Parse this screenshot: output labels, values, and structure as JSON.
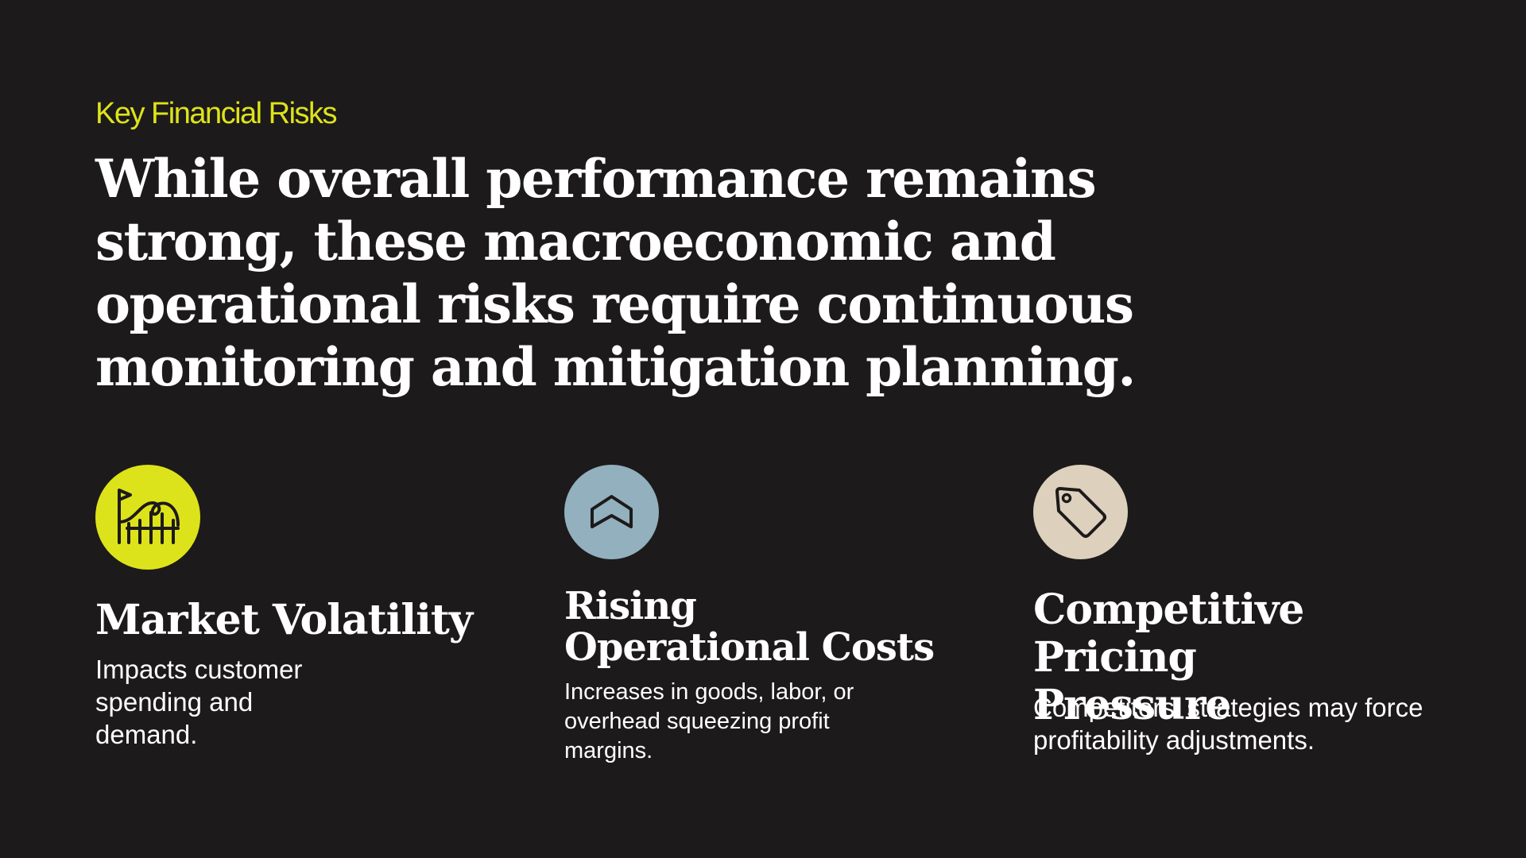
{
  "header": {
    "eyebrow": "Key Financial Risks",
    "headline": "While overall performance remains strong, these macroeconomic and operational risks require continuous monitoring and mitigation planning."
  },
  "cards": [
    {
      "title": "Market Volatility",
      "description": "Impacts customer spending and demand."
    },
    {
      "title": "Rising Operational Costs",
      "description": "Increases in goods, labor, or overhead squeezing profit margins."
    },
    {
      "title": "Competitive Pricing Pressure",
      "description": "Competitors' strategies may force profitability adjustments."
    }
  ]
}
